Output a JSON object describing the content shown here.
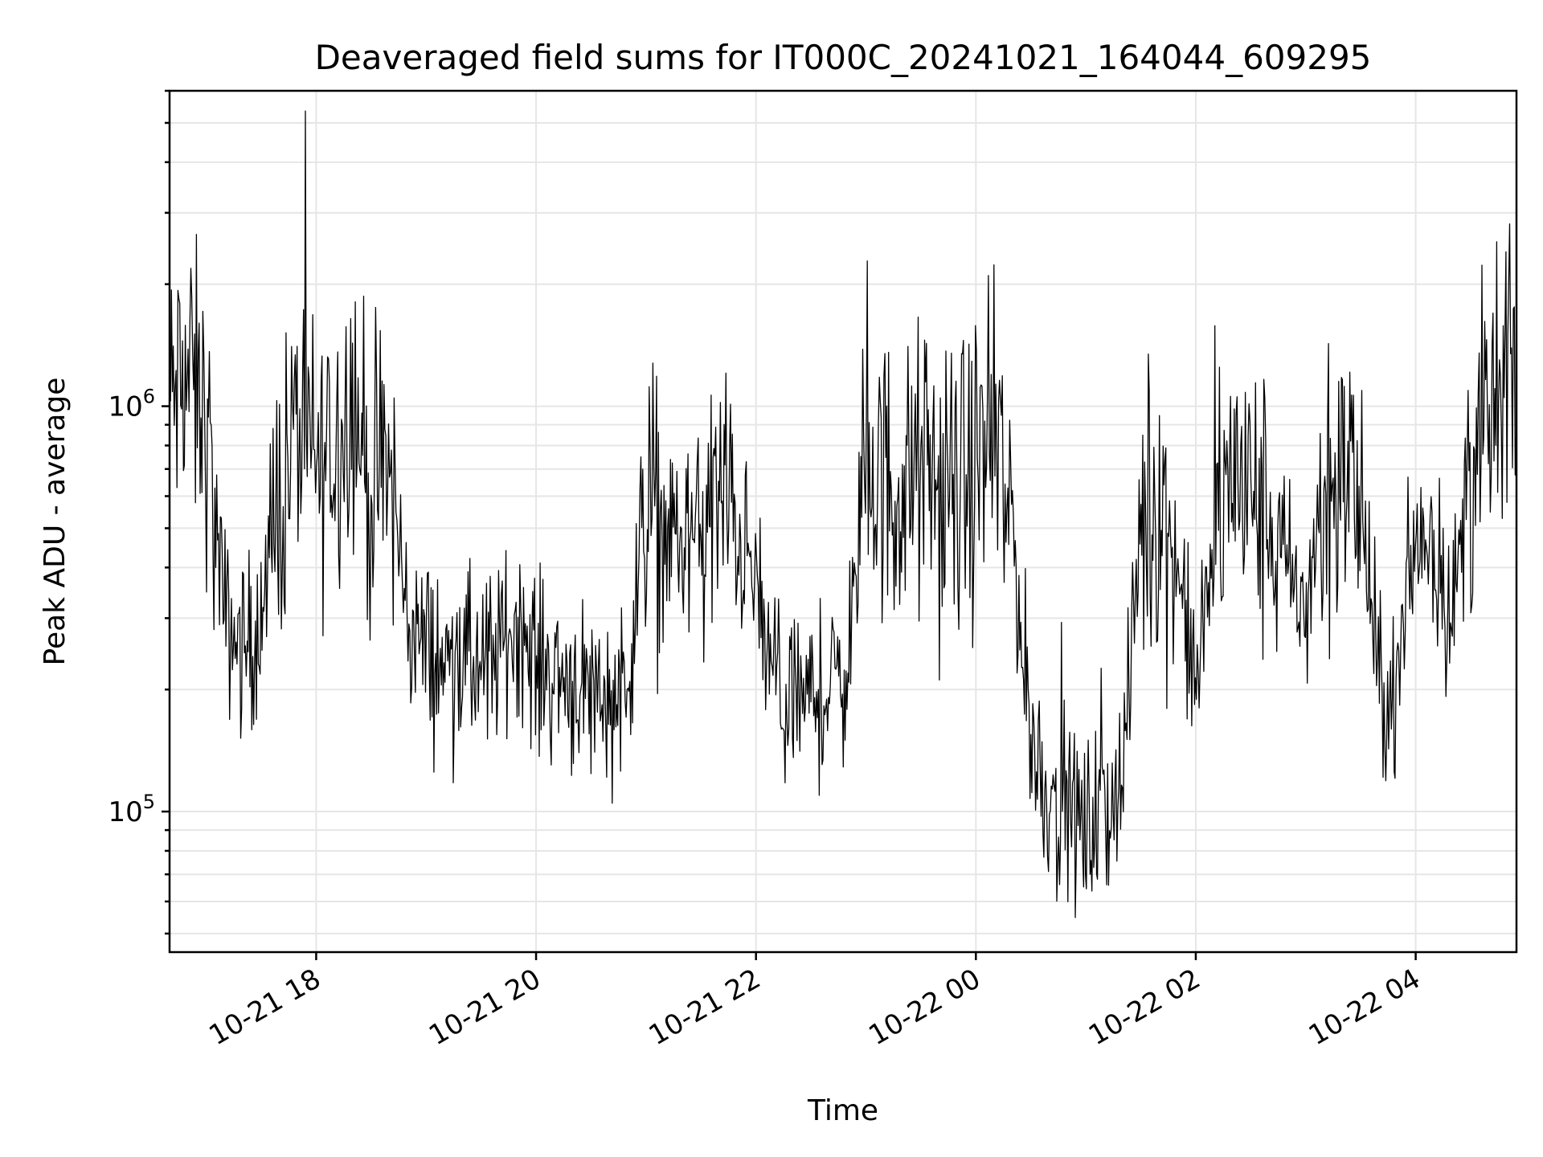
{
  "chart_data": {
    "type": "line",
    "title": "Deaveraged field sums for IT000C_20241021_164044_609295",
    "xlabel": "Time",
    "ylabel": "Peak ADU - average",
    "yscale": "log",
    "grid": true,
    "line_color": "#000000",
    "xlim": [
      "2024-10-21T16:40",
      "2024-10-22T04:55"
    ],
    "ylim": [
      45000,
      6000000
    ],
    "x_ticks": [
      {
        "time": "2024-10-21T18:00",
        "label": "10-21 18"
      },
      {
        "time": "2024-10-21T20:00",
        "label": "10-21 20"
      },
      {
        "time": "2024-10-21T22:00",
        "label": "10-21 22"
      },
      {
        "time": "2024-10-22T00:00",
        "label": "10-22 00"
      },
      {
        "time": "2024-10-22T02:00",
        "label": "10-22 02"
      },
      {
        "time": "2024-10-22T04:00",
        "label": "10-22 04"
      }
    ],
    "y_ticks": [
      {
        "value": 100000,
        "base": "10",
        "exp": "5"
      },
      {
        "value": 1000000,
        "base": "10",
        "exp": "6"
      }
    ],
    "series": [
      {
        "x": [
          "2024-10-21T16:40",
          "2024-10-21T16:50",
          "2024-10-21T17:00",
          "2024-10-21T17:10",
          "2024-10-21T17:20",
          "2024-10-21T17:30",
          "2024-10-21T17:40",
          "2024-10-21T17:50",
          "2024-10-21T18:00",
          "2024-10-21T18:10",
          "2024-10-21T18:20",
          "2024-10-21T18:30",
          "2024-10-21T18:40",
          "2024-10-21T18:50",
          "2024-10-21T19:00",
          "2024-10-21T19:10",
          "2024-10-21T19:20",
          "2024-10-21T19:30",
          "2024-10-21T19:40",
          "2024-10-21T19:50",
          "2024-10-21T20:00",
          "2024-10-21T20:10",
          "2024-10-21T20:20",
          "2024-10-21T20:30",
          "2024-10-21T20:40",
          "2024-10-21T20:50",
          "2024-10-21T21:00",
          "2024-10-21T21:10",
          "2024-10-21T21:20",
          "2024-10-21T21:30",
          "2024-10-21T21:40",
          "2024-10-21T21:50",
          "2024-10-21T22:00",
          "2024-10-21T22:10",
          "2024-10-21T22:20",
          "2024-10-21T22:30",
          "2024-10-21T22:40",
          "2024-10-21T22:50",
          "2024-10-21T23:00",
          "2024-10-21T23:10",
          "2024-10-21T23:20",
          "2024-10-21T23:30",
          "2024-10-21T23:40",
          "2024-10-21T23:50",
          "2024-10-22T00:00",
          "2024-10-22T00:10",
          "2024-10-22T00:20",
          "2024-10-22T00:30",
          "2024-10-22T00:40",
          "2024-10-22T00:50",
          "2024-10-22T01:00",
          "2024-10-22T01:10",
          "2024-10-22T01:20",
          "2024-10-22T01:30",
          "2024-10-22T01:40",
          "2024-10-22T01:50",
          "2024-10-22T02:00",
          "2024-10-22T02:10",
          "2024-10-22T02:20",
          "2024-10-22T02:30",
          "2024-10-22T02:40",
          "2024-10-22T02:50",
          "2024-10-22T03:00",
          "2024-10-22T03:10",
          "2024-10-22T03:20",
          "2024-10-22T03:30",
          "2024-10-22T03:40",
          "2024-10-22T03:50",
          "2024-10-22T04:00",
          "2024-10-22T04:10",
          "2024-10-22T04:20",
          "2024-10-22T04:30",
          "2024-10-22T04:40",
          "2024-10-22T04:50",
          "2024-10-22T04:55"
        ],
        "y": [
          1000000,
          1200000,
          900000,
          300000,
          250000,
          280000,
          600000,
          900000,
          700000,
          800000,
          1100000,
          600000,
          700000,
          300000,
          250000,
          230000,
          240000,
          220000,
          250000,
          300000,
          230000,
          220000,
          210000,
          200000,
          190000,
          210000,
          600000,
          500000,
          450000,
          500000,
          600000,
          500000,
          350000,
          200000,
          180000,
          190000,
          200000,
          230000,
          700000,
          650000,
          600000,
          700000,
          600000,
          600000,
          700000,
          800000,
          500000,
          150000,
          110000,
          100000,
          90000,
          100000,
          120000,
          500000,
          600000,
          400000,
          200000,
          450000,
          700000,
          600000,
          500000,
          400000,
          300000,
          600000,
          700000,
          600000,
          200000,
          190000,
          500000,
          450000,
          300000,
          700000,
          900000,
          1100000,
          1200000
        ]
      }
    ]
  }
}
